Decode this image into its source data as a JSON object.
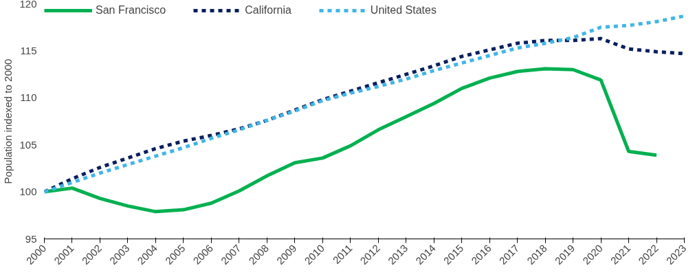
{
  "chart_data": {
    "type": "line",
    "ylabel": "Population indexed to 2000",
    "x": [
      2000,
      2001,
      2002,
      2003,
      2004,
      2005,
      2006,
      2007,
      2008,
      2009,
      2010,
      2011,
      2012,
      2013,
      2014,
      2015,
      2016,
      2017,
      2018,
      2019,
      2020,
      2021,
      2022,
      2023
    ],
    "series": [
      {
        "name": "San Francisco",
        "color": "#00b050",
        "line_style": "solid",
        "values": [
          100,
          100.4,
          99.3,
          98.5,
          97.9,
          98.1,
          98.8,
          100.1,
          101.7,
          103.1,
          103.6,
          104.9,
          106.6,
          108.0,
          109.4,
          111.0,
          112.1,
          112.8,
          113.1,
          113.0,
          111.9,
          104.3,
          103.9,
          null
        ]
      },
      {
        "name": "California",
        "color": "#0a1f5c",
        "line_style": "dashed",
        "values": [
          100,
          101.4,
          102.6,
          103.6,
          104.6,
          105.4,
          106.0,
          106.7,
          107.6,
          108.7,
          109.8,
          110.7,
          111.6,
          112.5,
          113.4,
          114.4,
          115.1,
          115.8,
          116.1,
          116.1,
          116.3,
          115.2,
          114.9,
          114.7
        ]
      },
      {
        "name": "United States",
        "color": "#41b6e6",
        "line_style": "dashed",
        "values": [
          100,
          101.0,
          102.0,
          102.9,
          103.8,
          104.7,
          105.7,
          106.6,
          107.6,
          108.6,
          109.7,
          110.5,
          111.2,
          112.0,
          112.9,
          113.7,
          114.5,
          115.3,
          115.8,
          116.4,
          117.5,
          117.7,
          118.1,
          118.7
        ]
      }
    ],
    "xlim": [
      2000,
      2023
    ],
    "xticks": [
      2000,
      2001,
      2002,
      2003,
      2004,
      2005,
      2006,
      2007,
      2008,
      2009,
      2010,
      2011,
      2012,
      2013,
      2014,
      2015,
      2016,
      2017,
      2018,
      2019,
      2020,
      2021,
      2022,
      2023
    ],
    "ylim": [
      95,
      120
    ],
    "yticks": [
      95,
      100,
      105,
      110,
      115,
      120
    ],
    "grid": false,
    "legend": "top",
    "marker": "none"
  }
}
